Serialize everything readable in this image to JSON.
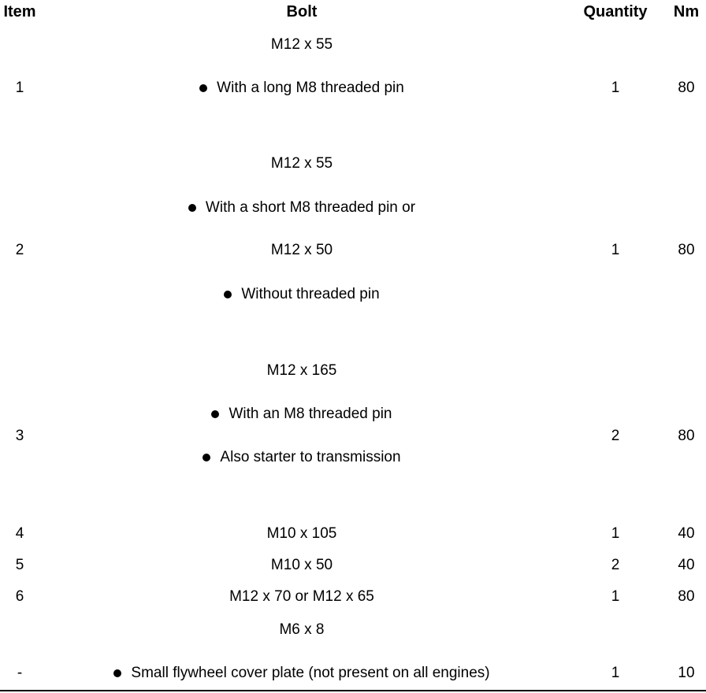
{
  "headers": {
    "item": "Item",
    "bolt": "Bolt",
    "quantity": "Quantity",
    "nm": "Nm"
  },
  "lines": [
    {
      "bolt": "M12 x 55"
    },
    {
      "item": "1",
      "bolt": "With a long M8 threaded pin",
      "bullet": true,
      "quantity": "1",
      "nm": "80"
    },
    {
      "bolt": "M12 x 55"
    },
    {
      "bolt": "With a short M8 threaded pin or",
      "bullet": true
    },
    {
      "item": "2",
      "bolt": "M12 x 50",
      "quantity": "1",
      "nm": "80"
    },
    {
      "bolt": "Without threaded pin",
      "bullet": true
    },
    {
      "bolt": "M12 x 165"
    },
    {
      "bolt": "With an M8 threaded pin",
      "bullet": true
    },
    {
      "item": "3",
      "quantity": "2",
      "nm": "80"
    },
    {
      "bolt": "Also starter to transmission",
      "bullet": true
    },
    {
      "item": "4",
      "bolt": "M10 x 105",
      "quantity": "1",
      "nm": "40"
    },
    {
      "item": "5",
      "bolt": "M10 x 50",
      "quantity": "2",
      "nm": "40"
    },
    {
      "item": "6",
      "bolt": "M12 x 70 or M12 x 65",
      "quantity": "1",
      "nm": "80"
    },
    {
      "bolt": "M6 x 8"
    },
    {
      "item": "-",
      "bolt": "Small flywheel cover plate (not present on all engines)",
      "bullet": true,
      "quantity": "1",
      "nm": "10"
    }
  ]
}
